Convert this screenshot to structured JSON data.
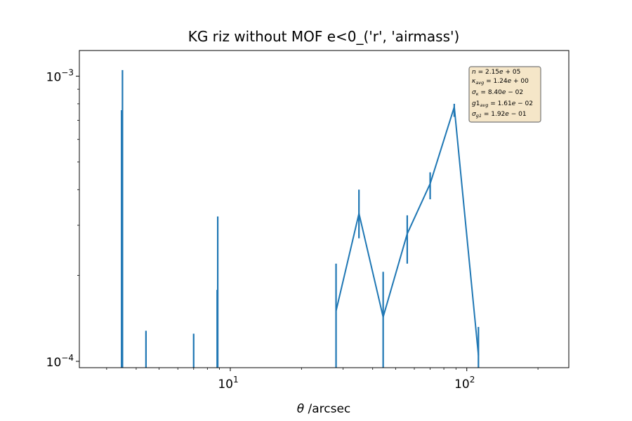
{
  "chart_data": {
    "type": "line",
    "title": "KG riz without MOF e<0_('r', 'airmass')",
    "xlabel": "θ /arcsec",
    "xlabel_symbol": "θ",
    "xlabel_unit": " /arcsec",
    "ylabel": "",
    "xscale": "log",
    "yscale": "log",
    "xlim": [
      2.3,
      270
    ],
    "ylim": [
      9.5e-05,
      0.00123
    ],
    "x_ticks": [
      {
        "value": 10,
        "base": "10",
        "exp": "1"
      },
      {
        "value": 100,
        "base": "10",
        "exp": "2"
      }
    ],
    "y_ticks": [
      {
        "value": 0.0001,
        "base": "10",
        "exp": "−4"
      },
      {
        "value": 0.001,
        "base": "10",
        "exp": "−3"
      }
    ],
    "grid": false,
    "series_color": "#1f77b4",
    "line_points": [
      {
        "x": 28.0,
        "y": 0.00015
      },
      {
        "x": 35.0,
        "y": 0.00033
      },
      {
        "x": 44.3,
        "y": 0.000143
      },
      {
        "x": 56.0,
        "y": 0.00028
      },
      {
        "x": 70.0,
        "y": 0.00042
      },
      {
        "x": 88.5,
        "y": 0.00078
      },
      {
        "x": 112.0,
        "y": 0.000105
      }
    ],
    "error_bars": [
      {
        "x": 3.5,
        "y_low": 9.5e-05,
        "y_high": 0.00105
      },
      {
        "x": 3.47,
        "y_low": 9.5e-05,
        "y_high": 0.00076
      },
      {
        "x": 4.4,
        "y_low": 9.5e-05,
        "y_high": 0.000128
      },
      {
        "x": 7.0,
        "y_low": 9.5e-05,
        "y_high": 0.000125
      },
      {
        "x": 8.85,
        "y_low": 9.5e-05,
        "y_high": 0.000322
      },
      {
        "x": 8.8,
        "y_low": 9.5e-05,
        "y_high": 0.000178
      },
      {
        "x": 28.0,
        "y_low": 9.5e-05,
        "y_high": 0.00022
      },
      {
        "x": 35.0,
        "y_low": 0.00027,
        "y_high": 0.0004
      },
      {
        "x": 44.3,
        "y_low": 9.5e-05,
        "y_high": 0.000206
      },
      {
        "x": 56.0,
        "y_low": 0.00022,
        "y_high": 0.000325
      },
      {
        "x": 70.0,
        "y_low": 0.00037,
        "y_high": 0.00046
      },
      {
        "x": 88.5,
        "y_low": 0.00072,
        "y_high": 0.0008
      },
      {
        "x": 112.0,
        "y_low": 9.5e-05,
        "y_high": 0.000132
      }
    ],
    "stats_box": {
      "lines": [
        "n = 2.15e + 05",
        "κavg = 1.24e + 00",
        "σκ = 8.40e − 02",
        "g1avg = 1.61e − 02",
        "σg1 = 1.92e − 01"
      ],
      "background": "#f5e6c8",
      "border": "#777777",
      "placement": "top-right"
    }
  }
}
